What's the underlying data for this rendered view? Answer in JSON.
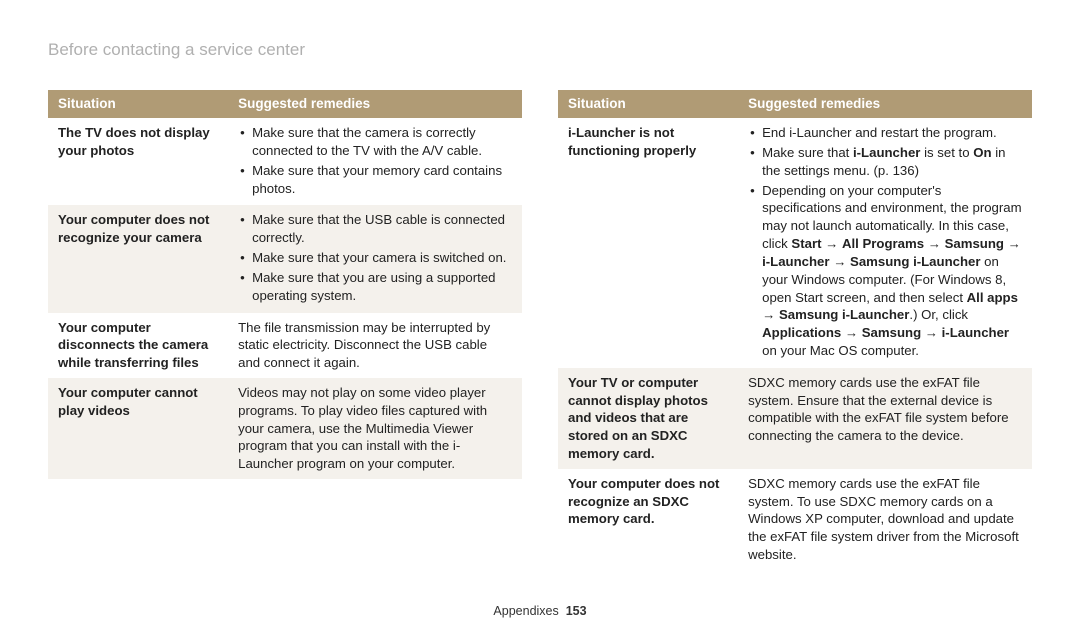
{
  "page": {
    "title": "Before contacting a service center",
    "footer_label": "Appendixes",
    "page_number": "153"
  },
  "headers": {
    "situation": "Situation",
    "remedies": "Suggested remedies"
  },
  "colors": {
    "header_bg": "#b09b75",
    "header_text": "#ffffff",
    "title_gray": "#b0b0b0",
    "row_alt_bg": "#f4f1ec",
    "body_text": "#222222"
  },
  "left_table": [
    {
      "situation": "The TV does not display your photos",
      "remedies_list": [
        "Make sure that the camera is correctly connected to the TV with the A/V cable.",
        "Make sure that your memory card contains photos."
      ]
    },
    {
      "situation": "Your computer does not recognize your camera",
      "remedies_list": [
        "Make sure that the USB cable is connected correctly.",
        "Make sure that your camera is switched on.",
        "Make sure that you are using a supported operating system."
      ]
    },
    {
      "situation": "Your computer disconnects the camera while transferring files",
      "remedies_text": "The file transmission may be interrupted by static electricity. Disconnect the USB cable and connect it again."
    },
    {
      "situation": "Your computer cannot play videos",
      "remedies_text": "Videos may not play on some video player programs. To play video files captured with your camera, use the Multimedia Viewer program that you can install with the i-Launcher program on your computer."
    }
  ],
  "right_table": [
    {
      "situation": "i-Launcher is not functioning properly",
      "remedies_list_rich": [
        {
          "parts": [
            {
              "t": "End i-Launcher and restart the program."
            }
          ]
        },
        {
          "parts": [
            {
              "t": "Make sure that "
            },
            {
              "t": "i-Launcher",
              "b": true
            },
            {
              "t": " is set to "
            },
            {
              "t": "On",
              "b": true
            },
            {
              "t": " in the settings menu. (p. 136)"
            }
          ]
        },
        {
          "parts": [
            {
              "t": "Depending on your computer's specifications and environment, the program may not launch automatically. In this case, click "
            },
            {
              "t": "Start",
              "b": true
            },
            {
              "t": " → "
            },
            {
              "t": "All Programs",
              "b": true
            },
            {
              "t": " → "
            },
            {
              "t": "Samsung",
              "b": true
            },
            {
              "t": " → "
            },
            {
              "t": "i-Launcher",
              "b": true
            },
            {
              "t": " → "
            },
            {
              "t": "Samsung i-Launcher",
              "b": true
            },
            {
              "t": " on your Windows computer. (For Windows 8, open Start screen, and then select "
            },
            {
              "t": "All apps",
              "b": true
            },
            {
              "t": " → "
            },
            {
              "t": "Samsung i-Launcher",
              "b": true
            },
            {
              "t": ".) Or, click "
            },
            {
              "t": "Applications",
              "b": true
            },
            {
              "t": " → "
            },
            {
              "t": "Samsung",
              "b": true
            },
            {
              "t": " → "
            },
            {
              "t": "i-Launcher",
              "b": true
            },
            {
              "t": " on your Mac OS computer."
            }
          ]
        }
      ]
    },
    {
      "situation": "Your TV or computer cannot display photos and videos that are stored on an SDXC memory card.",
      "remedies_text": "SDXC memory cards use the exFAT file system. Ensure that the external device is compatible with the exFAT file system before connecting the camera to the device."
    },
    {
      "situation": "Your computer does not recognize an SDXC memory card.",
      "remedies_text": "SDXC memory cards use the exFAT file system. To use SDXC memory cards on a Windows XP computer, download and update the exFAT file system driver from the Microsoft website."
    }
  ]
}
